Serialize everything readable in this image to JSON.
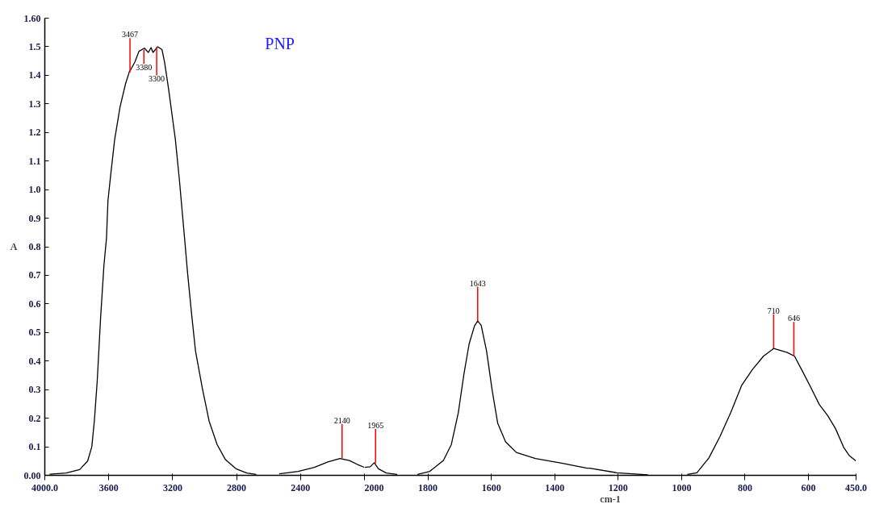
{
  "chart_data": [
    {
      "type": "line",
      "title": "PNP",
      "ylabel": "A",
      "xlim": [
        4000,
        2000
      ],
      "xticks": [
        {
          "value": 4000,
          "label": "4000.0"
        },
        3600,
        3200,
        2800,
        2400
      ],
      "ylim": [
        0,
        1.6
      ],
      "yticks": [
        {
          "value": 0,
          "label": "0.00"
        },
        0.1,
        0.2,
        0.3,
        0.4,
        0.5,
        0.6,
        0.7,
        0.8,
        0.9,
        {
          "value": 1,
          "label": "1.0"
        },
        1.1,
        1.2,
        1.3,
        1.4,
        1.5,
        {
          "value": 1.6,
          "label": "1.60"
        }
      ],
      "series": [
        {
          "color": "#000000",
          "x": [
            3970,
            3867,
            3782,
            3732,
            3706,
            3690,
            3672,
            3651,
            3630,
            3614,
            3605,
            3588,
            3563,
            3529,
            3495,
            3470,
            3462,
            3436,
            3411,
            3377,
            3352,
            3335,
            3323,
            3293,
            3267,
            3251,
            3225,
            3183,
            3158,
            3124,
            3107,
            3082,
            3057,
            3014,
            2972,
            2922,
            2871,
            2804,
            2736,
            2677,
            2600,
            2533,
            2415,
            2314,
            2229,
            2153,
            2094,
            2044,
            2000
          ],
          "values": [
            0.004,
            0.008,
            0.02,
            0.05,
            0.1,
            0.19,
            0.33,
            0.55,
            0.735,
            0.83,
            0.96,
            1.05,
            1.175,
            1.29,
            1.37,
            1.414,
            1.42,
            1.447,
            1.484,
            1.495,
            1.48,
            1.497,
            1.48,
            1.5,
            1.49,
            1.447,
            1.35,
            1.175,
            1.035,
            0.82,
            0.71,
            0.567,
            0.435,
            0.304,
            0.19,
            0.108,
            0.056,
            0.023,
            0.008,
            0.003,
            null,
            0.005,
            0.014,
            0.028,
            0.047,
            0.059,
            0.052,
            0.038,
            0.028
          ]
        }
      ],
      "annotations": [
        {
          "text": "3467",
          "x": 3467,
          "y": 1.41
        },
        {
          "text": "3380",
          "x": 3380,
          "y": 1.49
        },
        {
          "text": "3300",
          "x": 3300,
          "y": 1.5
        },
        {
          "text": "2140",
          "x": 2140,
          "y": 0.06
        }
      ]
    },
    {
      "type": "line",
      "xlabel": "cm-1",
      "xlim": [
        2000,
        450
      ],
      "xticks": [
        2000,
        1800,
        1600,
        1400,
        1200,
        1000,
        800,
        600,
        {
          "value": 450,
          "label": "450.0"
        }
      ],
      "ylim": [
        0,
        1.6
      ],
      "tick_labels": "x",
      "series": [
        {
          "color": "#000000",
          "x": [
            2000,
            1982,
            1969,
            1956,
            1931,
            1897,
            1865,
            1833,
            1794,
            1751,
            1726,
            1704,
            1687,
            1670,
            1653,
            1643,
            1632,
            1615,
            1597,
            1580,
            1555,
            1521,
            1461,
            1375,
            1298,
            1290,
            1204,
            1106,
            1050,
            982,
            952,
            914,
            879,
            845,
            811,
            777,
            742,
            710,
            667,
            644,
            617,
            591,
            566,
            540,
            515,
            489,
            472,
            451
          ],
          "values": [
            0.028,
            0.03,
            0.044,
            0.023,
            0.008,
            0.003,
            null,
            0.003,
            0.014,
            0.052,
            0.108,
            0.22,
            0.35,
            0.46,
            0.523,
            0.54,
            0.525,
            0.435,
            0.295,
            0.183,
            0.117,
            0.08,
            0.059,
            0.042,
            0.025,
            0.025,
            0.009,
            0.002,
            null,
            0.003,
            0.009,
            0.061,
            0.136,
            0.22,
            0.314,
            0.37,
            0.417,
            0.444,
            0.43,
            0.417,
            0.36,
            0.304,
            0.248,
            0.21,
            0.164,
            0.098,
            0.07,
            0.051
          ]
        }
      ],
      "annotations": [
        {
          "text": "1965",
          "x": 1965,
          "y": 0.042
        },
        {
          "text": "1643",
          "x": 1643,
          "y": 0.54
        },
        {
          "text": "710",
          "x": 710,
          "y": 0.444
        },
        {
          "text": "646",
          "x": 646,
          "y": 0.417
        }
      ]
    }
  ]
}
